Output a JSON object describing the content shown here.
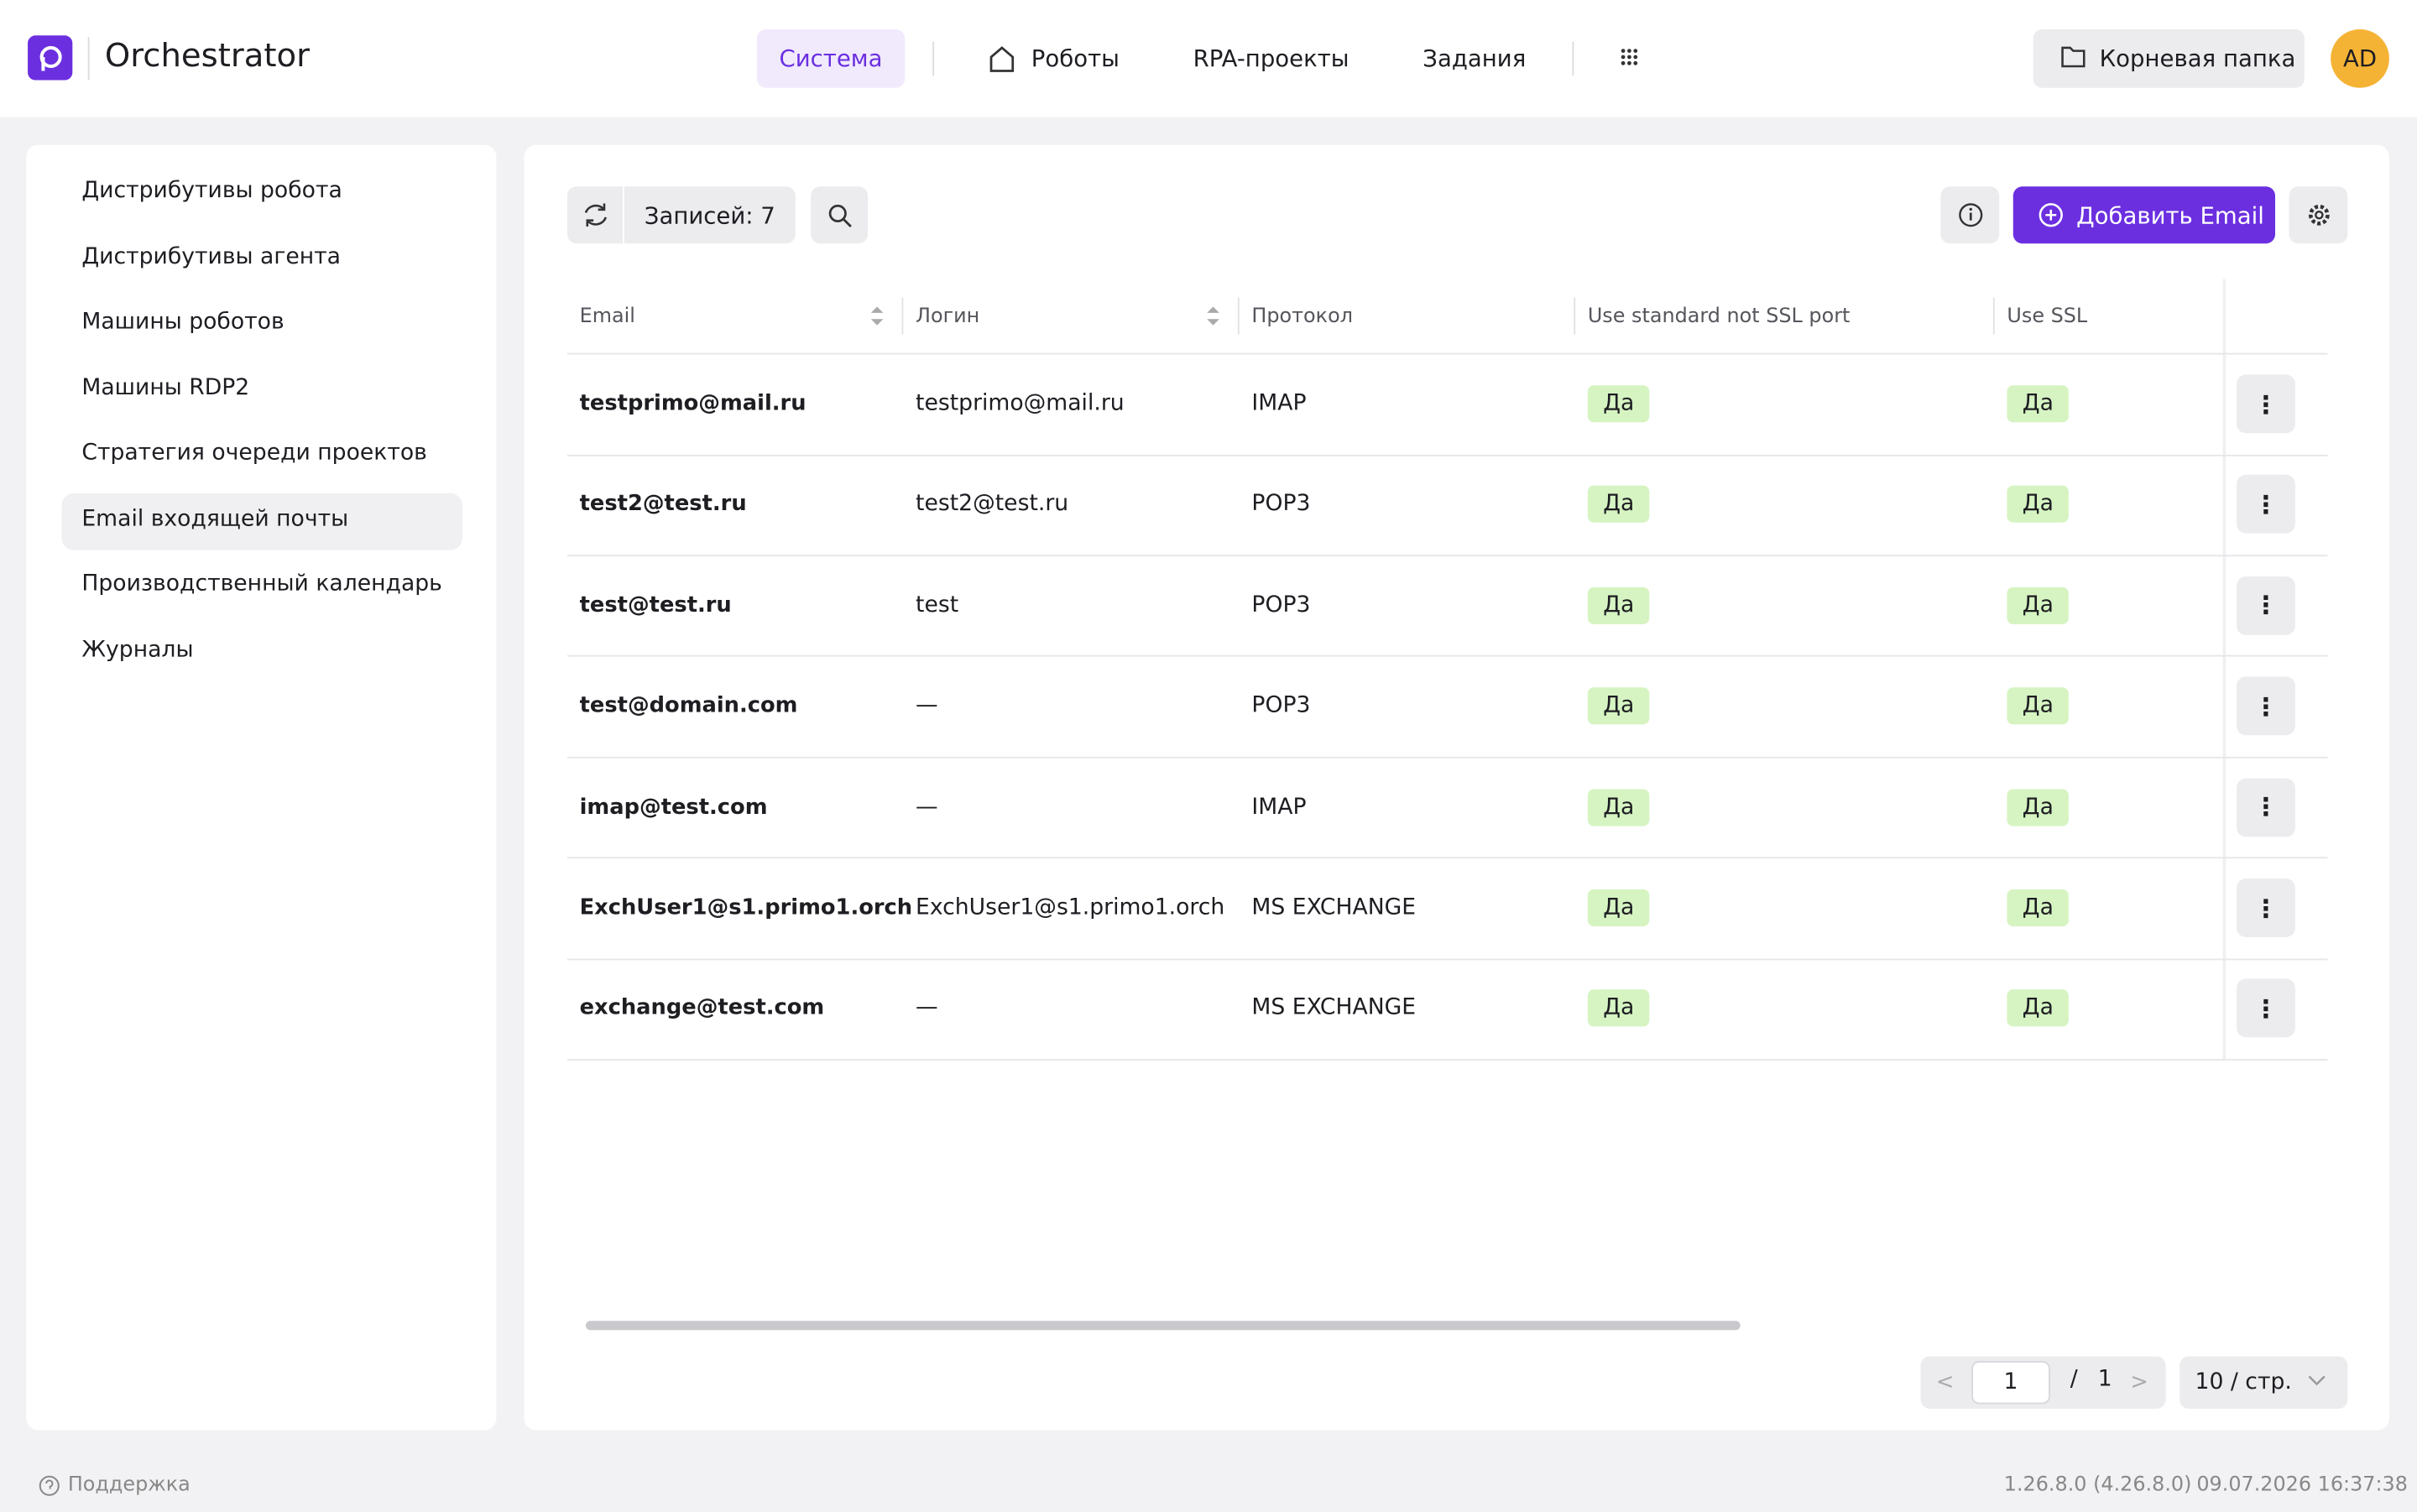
{
  "header": {
    "brand": "Orchestrator",
    "nav": [
      "Система",
      "Роботы",
      "RPA-проекты",
      "Задания"
    ],
    "root_folder": "Корневая папка",
    "avatar": "AD"
  },
  "sidebar": {
    "items": [
      "Дистрибутивы робота",
      "Дистрибутивы агента",
      "Машины роботов",
      "Машины RDP2",
      "Стратегия очереди проектов",
      "Email входящей почты",
      "Производственный календарь",
      "Журналы"
    ]
  },
  "toolbar": {
    "records": "Записей: 7",
    "add_button": "Добавить Email"
  },
  "table": {
    "columns": [
      "Email",
      "Логин",
      "Протокол",
      "Use standard not SSL port",
      "Use SSL"
    ],
    "rows": [
      [
        "testprimo@mail.ru",
        "testprimo@mail.ru",
        "IMAP",
        "Да",
        "Да"
      ],
      [
        "test2@test.ru",
        "test2@test.ru",
        "POP3",
        "Да",
        "Да"
      ],
      [
        "test@test.ru",
        "test",
        "POP3",
        "Да",
        "Да"
      ],
      [
        "test@domain.com",
        "—",
        "POP3",
        "Да",
        "Да"
      ],
      [
        "imap@test.com",
        "—",
        "IMAP",
        "Да",
        "Да"
      ],
      [
        "ExchUser1@s1.primo1.orch",
        "ExchUser1@s1.primo1.orch",
        "MS EXCHANGE",
        "Да",
        "Да"
      ],
      [
        "exchange@test.com",
        "—",
        "MS EXCHANGE",
        "Да",
        "Да"
      ]
    ]
  },
  "pagination": {
    "page": "1",
    "separator": "/",
    "total": "1",
    "page_size": "10 / стр."
  },
  "footer": {
    "support": "Поддержка",
    "version": "1.26.8.0 (4.26.8.0)",
    "datetime": "09.07.2026 16:37:38"
  }
}
